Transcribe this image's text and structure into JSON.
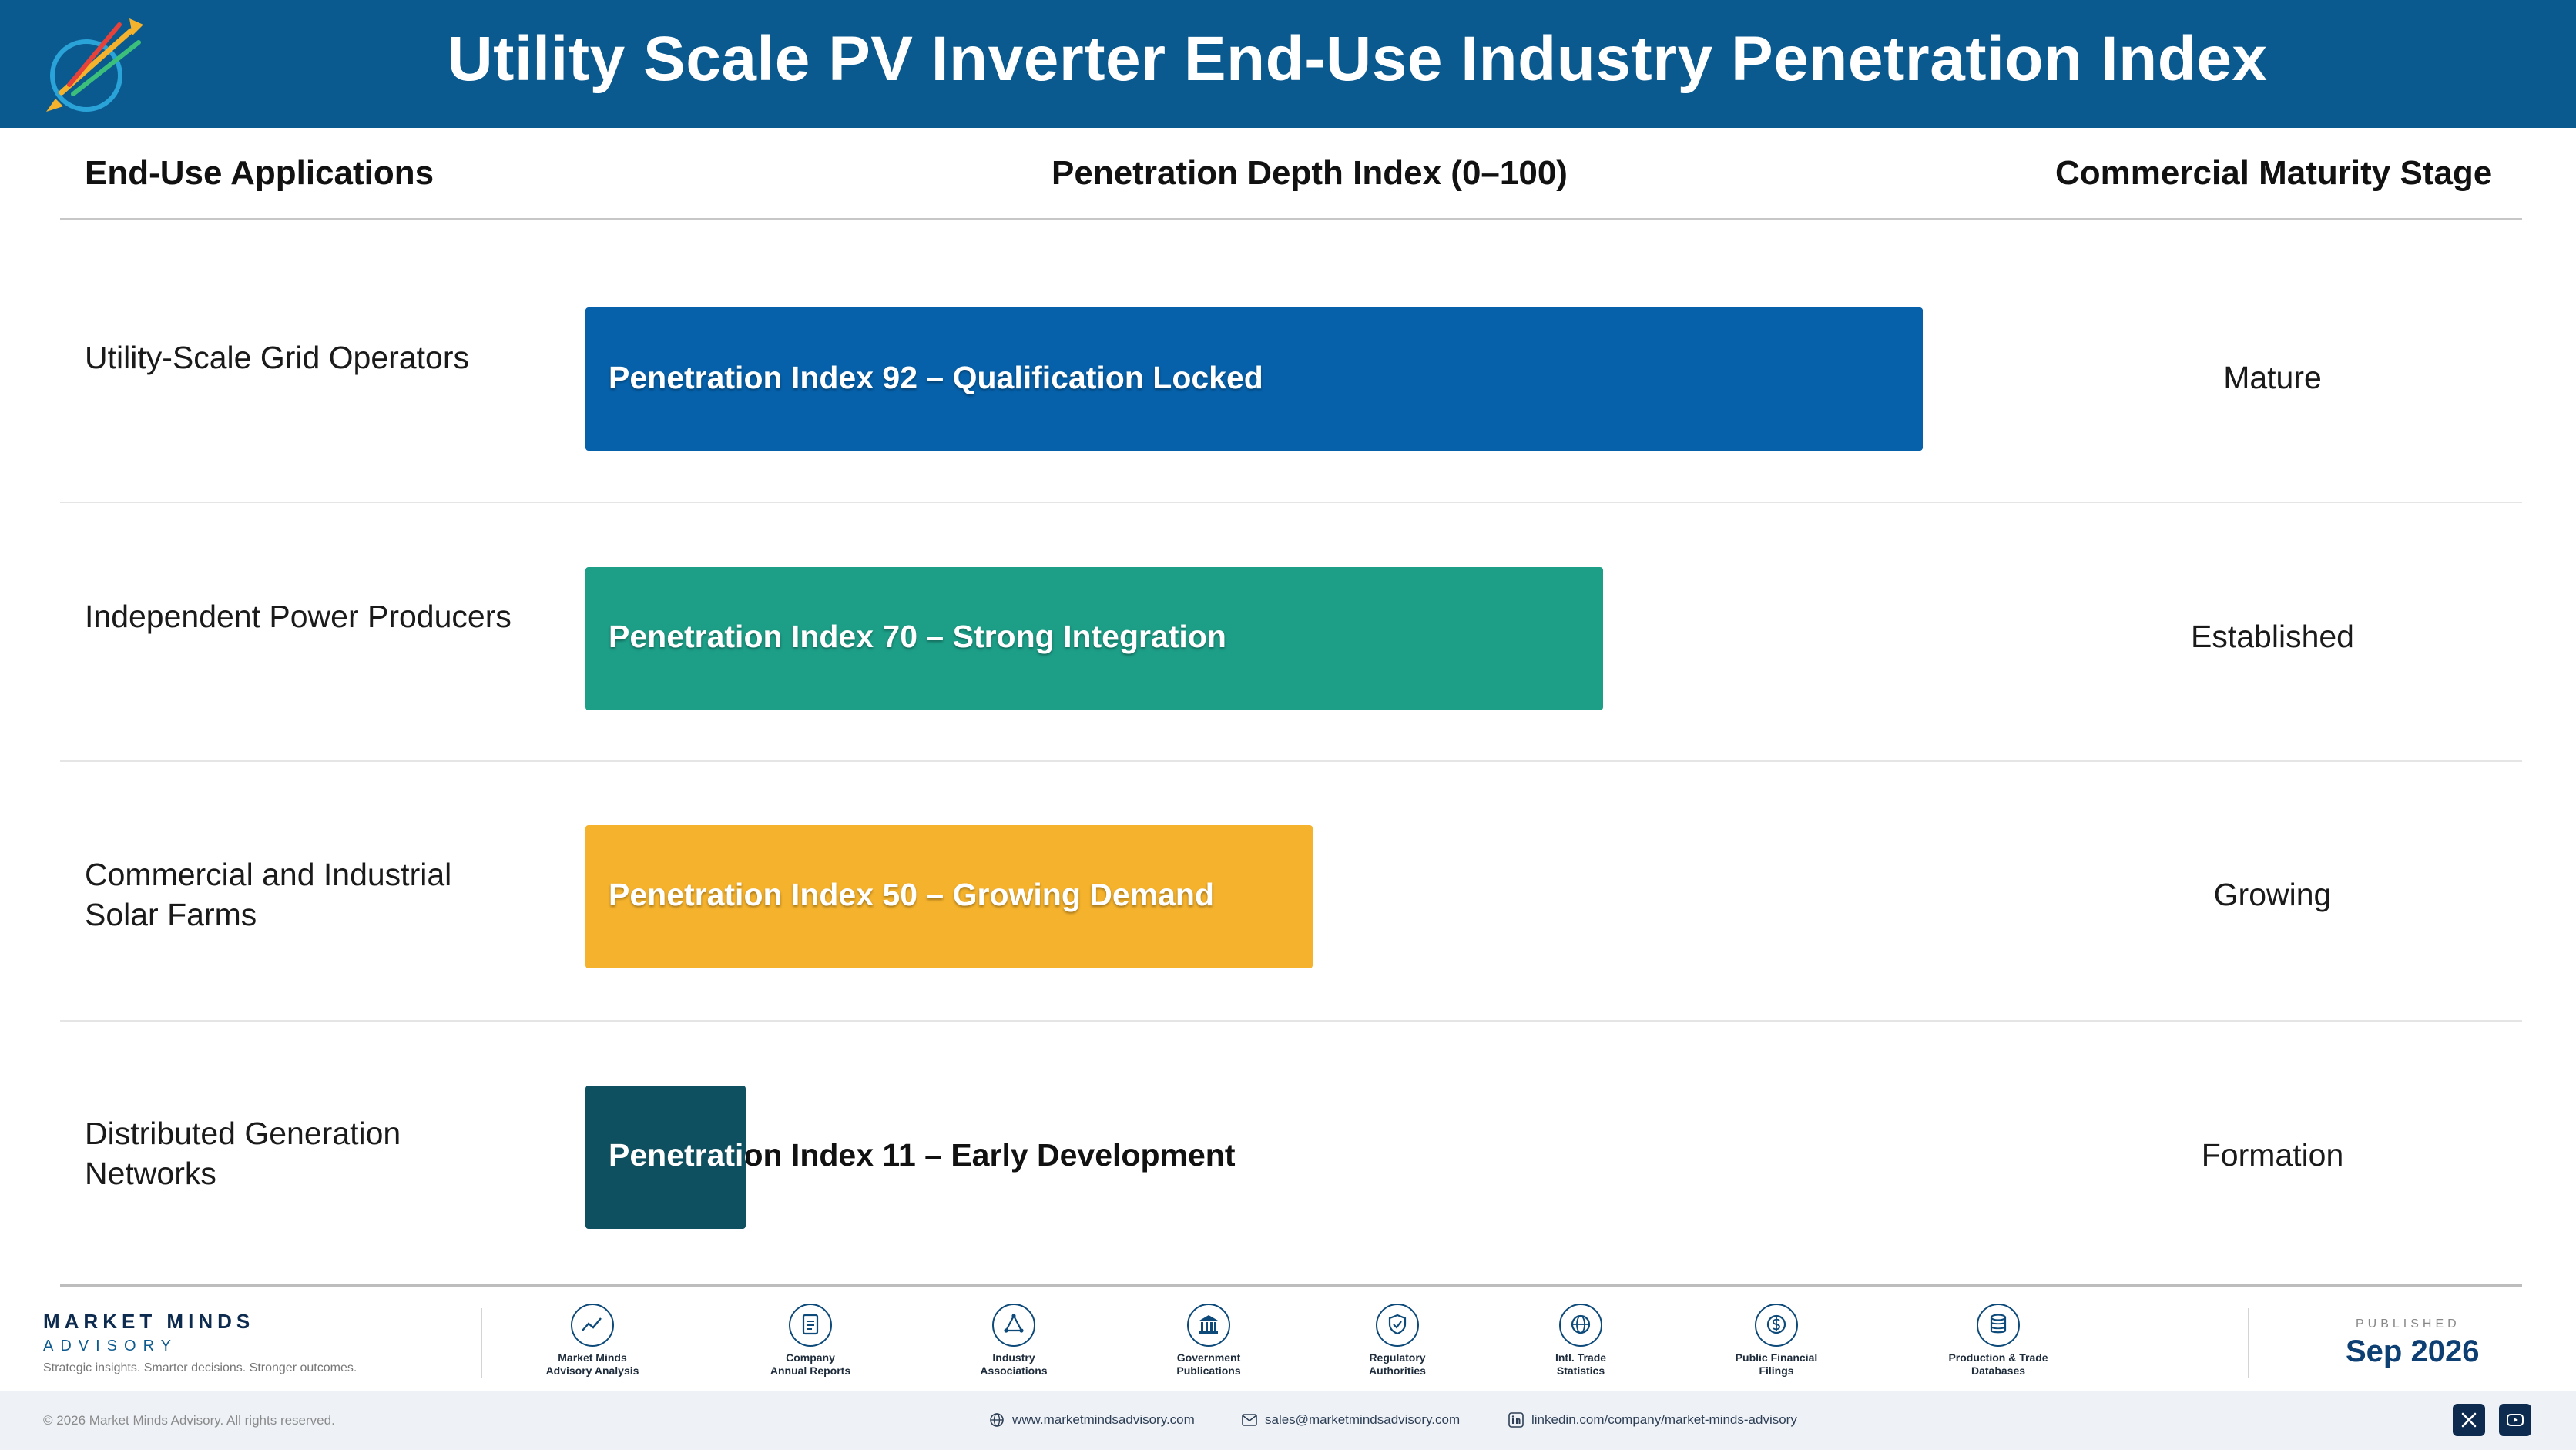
{
  "header": {
    "title": "Utility Scale PV Inverter End-Use Industry Penetration Index",
    "logo_caption": "Market Minds Advisory"
  },
  "columns": {
    "applications": "End-Use Applications",
    "depth": "Penetration Depth Index (0–100)",
    "stage": "Commercial Maturity Stage"
  },
  "rows": [
    {
      "application": "Utility-Scale Grid Operators",
      "label": "Penetration Index 92 – Qualification Locked",
      "stage": "Mature",
      "color": "#0661aa"
    },
    {
      "application": "Independent Power Producers",
      "label": "Penetration Index 70 – Strong Integration",
      "stage": "Established",
      "color": "#1d9e87"
    },
    {
      "application": "Commercial and Industrial Solar Farms",
      "label": "Penetration Index 50 – Growing Demand",
      "stage": "Growing",
      "color": "#f5b22c"
    },
    {
      "application": "Distributed Generation Networks",
      "label": "Penetration Index 11 – Early Development",
      "stage": "Formation",
      "color": "#0e4f60"
    }
  ],
  "chart_data": {
    "type": "bar",
    "orientation": "horizontal",
    "categories": [
      "Utility-Scale Grid Operators",
      "Independent Power Producers",
      "Commercial and Industrial Solar Farms",
      "Distributed Generation Networks"
    ],
    "values": [
      92,
      70,
      50,
      11
    ],
    "xlim": [
      0,
      100
    ],
    "title": "Utility Scale PV Inverter End-Use Industry Penetration Index",
    "xlabel": "Penetration Depth Index (0–100)",
    "ylabel": "End-Use Applications",
    "grid": false
  },
  "footer": {
    "brand_name": "MARKET MINDS",
    "brand_sub": "ADVISORY",
    "tagline": "Strategic insights. Smarter decisions. Stronger outcomes.",
    "sources": [
      {
        "label1": "Market Minds",
        "label2": "Advisory Analysis",
        "icon": "chart-line-icon"
      },
      {
        "label1": "Company",
        "label2": "Annual Reports",
        "icon": "document-icon"
      },
      {
        "label1": "Industry",
        "label2": "Associations",
        "icon": "network-icon"
      },
      {
        "label1": "Government",
        "label2": "Publications",
        "icon": "government-building-icon"
      },
      {
        "label1": "Regulatory",
        "label2": "Authorities",
        "icon": "shield-check-icon"
      },
      {
        "label1": "Intl. Trade",
        "label2": "Statistics",
        "icon": "globe-icon"
      },
      {
        "label1": "Public Financial",
        "label2": "Filings",
        "icon": "dollar-coin-icon"
      },
      {
        "label1": "Production & Trade",
        "label2": "Databases",
        "icon": "database-icon"
      }
    ],
    "published_label": "PUBLISHED",
    "published_date": "Sep 2026",
    "copyright": "© 2026 Market Minds Advisory. All rights reserved.",
    "website": "www.marketmindsadvisory.com",
    "email": "sales@marketmindsadvisory.com",
    "linkedin": "linkedin.com/company/market-minds-advisory"
  }
}
